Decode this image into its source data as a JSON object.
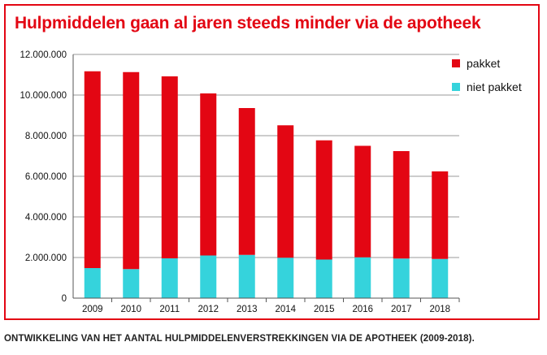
{
  "chart_data": {
    "type": "bar",
    "stacked": true,
    "title": "Hulpmiddelen gaan al jaren steeds minder via de apotheek",
    "caption": "ONTWIKKELING VAN HET AANTAL HULPMIDDELENVERSTREKKINGEN VIA DE APOTHEEK (2009-2018).",
    "categories": [
      "2009",
      "2010",
      "2011",
      "2012",
      "2013",
      "2014",
      "2015",
      "2016",
      "2017",
      "2018"
    ],
    "series": [
      {
        "name": "niet pakket",
        "color": "#35d3dc",
        "values": [
          1480000,
          1430000,
          1960000,
          2100000,
          2130000,
          1990000,
          1900000,
          2010000,
          1950000,
          1930000
        ]
      },
      {
        "name": "pakket",
        "color": "#e30613",
        "values": [
          9690000,
          9700000,
          8960000,
          7980000,
          7230000,
          6520000,
          5870000,
          5490000,
          5290000,
          4310000
        ]
      }
    ],
    "legend_order": [
      "pakket",
      "niet pakket"
    ],
    "y_ticks": [
      "0",
      "2.000.000",
      "4.000.000",
      "6.000.000",
      "8.000.000",
      "10.000.000",
      "12.000.000"
    ],
    "ylim": [
      0,
      12000000
    ],
    "grid": true,
    "legend_position": "top-right"
  }
}
